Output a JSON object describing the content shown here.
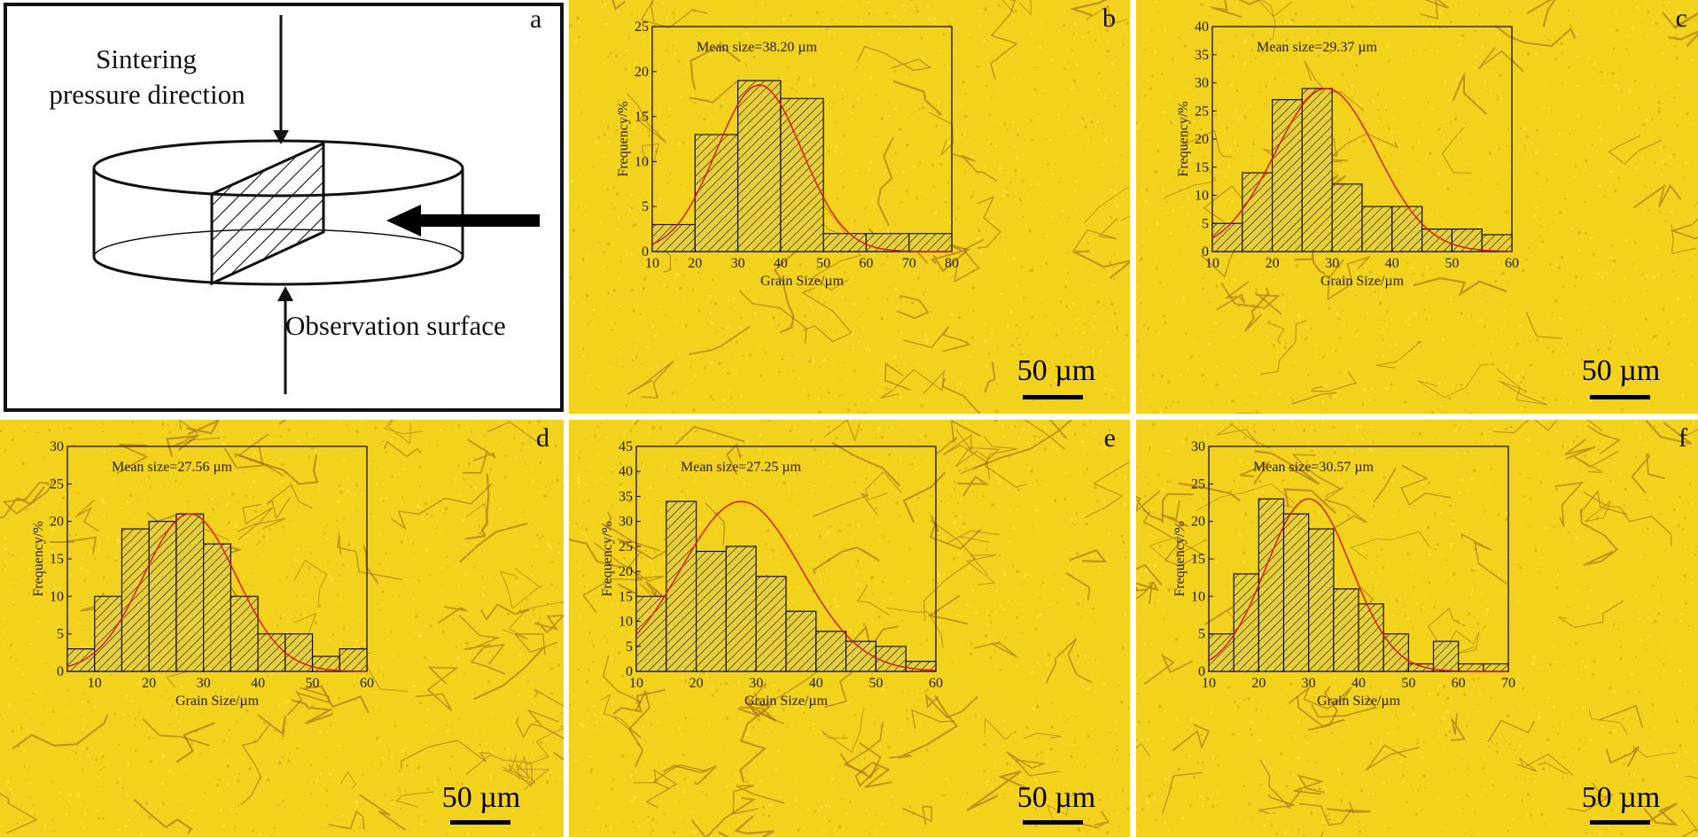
{
  "panels": [
    {
      "id": "a",
      "label": "a",
      "caption_top": [
        "Sintering",
        "pressure direction"
      ],
      "caption_bottom": "Observation surface"
    },
    {
      "id": "b",
      "label": "b",
      "scale": "50 µm"
    },
    {
      "id": "c",
      "label": "c",
      "scale": "50 µm"
    },
    {
      "id": "d",
      "label": "d",
      "scale": "50 µm"
    },
    {
      "id": "e",
      "label": "e",
      "scale": "50 µm"
    },
    {
      "id": "f",
      "label": "f",
      "scale": "50 µm"
    }
  ],
  "chart_data": [
    {
      "panel": "b",
      "type": "bar",
      "title": "Mean size=38.20 µm",
      "xlabel": "Grain Size/µm",
      "ylabel": "Frequency/%",
      "xlim": [
        10,
        80
      ],
      "ylim": [
        0,
        25
      ],
      "xticks": [
        10,
        20,
        30,
        40,
        50,
        60,
        70,
        80
      ],
      "yticks": [
        0,
        5,
        10,
        15,
        20,
        25
      ],
      "bin_edges": [
        10,
        20,
        30,
        40,
        50,
        60,
        70,
        80
      ],
      "values": [
        3,
        13,
        19,
        17,
        2,
        2,
        2
      ],
      "fit": {
        "mean": 35,
        "peak": 18.5,
        "sd": 10
      }
    },
    {
      "panel": "c",
      "type": "bar",
      "title": "Mean size=29.37 µm",
      "xlabel": "Grain Size/µm",
      "ylabel": "Frequency/%",
      "xlim": [
        10,
        60
      ],
      "ylim": [
        0,
        40
      ],
      "xticks": [
        10,
        20,
        30,
        40,
        50,
        60
      ],
      "yticks": [
        0,
        5,
        10,
        15,
        20,
        25,
        30,
        35,
        40
      ],
      "bin_edges": [
        10,
        15,
        20,
        25,
        30,
        35,
        40,
        45,
        50,
        55,
        60
      ],
      "values": [
        5,
        14,
        27,
        29,
        12,
        8,
        8,
        4,
        4,
        3
      ],
      "fit": {
        "mean": 29,
        "peak": 29,
        "sd": 8.5
      }
    },
    {
      "panel": "d",
      "type": "bar",
      "title": "Mean size=27.56 µm",
      "xlabel": "Grain Size/µm",
      "ylabel": "Frequency/%",
      "xlim": [
        5,
        60
      ],
      "ylim": [
        0,
        30
      ],
      "xticks": [
        10,
        20,
        30,
        40,
        50,
        60
      ],
      "yticks": [
        0,
        5,
        10,
        15,
        20,
        25,
        30
      ],
      "bin_edges": [
        5,
        10,
        15,
        20,
        25,
        30,
        35,
        40,
        45,
        50,
        55,
        60
      ],
      "values": [
        3,
        10,
        19,
        20,
        21,
        17,
        10,
        5,
        5,
        2,
        3
      ],
      "fit": {
        "mean": 27.5,
        "peak": 21,
        "sd": 8.5
      }
    },
    {
      "panel": "e",
      "type": "bar",
      "title": "Mean size=27.25 µm",
      "xlabel": "Grain Size/µm",
      "ylabel": "Frequency/%",
      "xlim": [
        10,
        60
      ],
      "ylim": [
        0,
        45
      ],
      "xticks": [
        10,
        20,
        30,
        40,
        50,
        60
      ],
      "yticks": [
        0,
        5,
        10,
        15,
        20,
        25,
        30,
        35,
        40,
        45
      ],
      "bin_edges": [
        10,
        15,
        20,
        25,
        30,
        35,
        40,
        45,
        50,
        55,
        60
      ],
      "values": [
        15,
        34,
        24,
        25,
        19,
        12,
        8,
        6,
        5,
        2
      ],
      "fit": {
        "mean": 27.5,
        "peak": 34,
        "sd": 10
      }
    },
    {
      "panel": "f",
      "type": "bar",
      "title": "Mean size=30.57 µm",
      "xlabel": "Grain Size/µm",
      "ylabel": "Frequency/%",
      "xlim": [
        10,
        70
      ],
      "ylim": [
        0,
        30
      ],
      "xticks": [
        10,
        20,
        30,
        40,
        50,
        60,
        70
      ],
      "yticks": [
        0,
        5,
        10,
        15,
        20,
        25,
        30
      ],
      "bin_edges": [
        10,
        15,
        20,
        25,
        30,
        35,
        40,
        45,
        50,
        55,
        60,
        65,
        70
      ],
      "values": [
        5,
        13,
        23,
        21,
        19,
        11,
        9,
        5,
        1,
        4,
        1,
        1
      ],
      "fit": {
        "mean": 30,
        "peak": 23,
        "sd": 8.5
      }
    }
  ],
  "colors": {
    "micro_bg": "#f2d21c",
    "bar_fill": "#e6cf3a",
    "fit_line": "#e01010",
    "grain_boundary": "#9a5a1c"
  }
}
